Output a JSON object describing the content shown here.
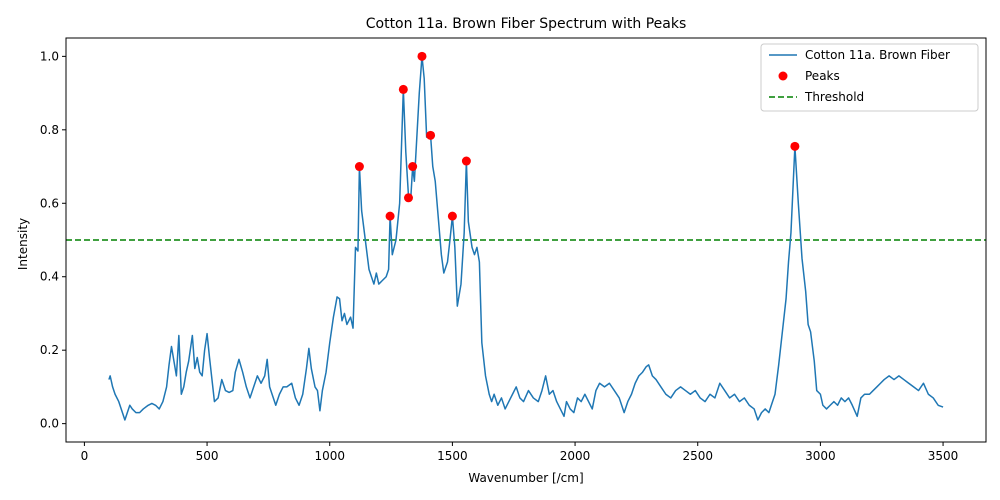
{
  "chart_data": {
    "type": "line",
    "title": "Cotton 11a. Brown Fiber Spectrum with Peaks",
    "xlabel": "Wavenumber [/cm]",
    "ylabel": "Intensity",
    "xlim": [
      -75,
      3675
    ],
    "ylim": [
      -0.05,
      1.05
    ],
    "xticks": [
      0,
      500,
      1000,
      1500,
      2000,
      2500,
      3000,
      3500
    ],
    "yticks": [
      0.0,
      0.2,
      0.4,
      0.6,
      0.8,
      1.0
    ],
    "grid": false,
    "legend_position": "top-right",
    "threshold": 0.5,
    "colors": {
      "spectrum": "#1f77b4",
      "peaks": "#ff0000",
      "threshold": "#008000"
    },
    "legend": [
      {
        "label": "Cotton 11a. Brown Fiber",
        "kind": "line"
      },
      {
        "label": "Peaks",
        "kind": "marker"
      },
      {
        "label": "Threshold",
        "kind": "dashed"
      }
    ],
    "series": [
      {
        "name": "Cotton 11a. Brown Fiber",
        "points": [
          [
            100,
            0.12
          ],
          [
            105,
            0.13
          ],
          [
            115,
            0.1
          ],
          [
            125,
            0.08
          ],
          [
            140,
            0.06
          ],
          [
            155,
            0.03
          ],
          [
            165,
            0.01
          ],
          [
            175,
            0.03
          ],
          [
            185,
            0.05
          ],
          [
            195,
            0.04
          ],
          [
            210,
            0.03
          ],
          [
            225,
            0.03
          ],
          [
            240,
            0.04
          ],
          [
            260,
            0.05
          ],
          [
            275,
            0.055
          ],
          [
            290,
            0.05
          ],
          [
            305,
            0.04
          ],
          [
            320,
            0.06
          ],
          [
            335,
            0.1
          ],
          [
            345,
            0.16
          ],
          [
            355,
            0.21
          ],
          [
            365,
            0.17
          ],
          [
            375,
            0.13
          ],
          [
            385,
            0.24
          ],
          [
            395,
            0.08
          ],
          [
            405,
            0.1
          ],
          [
            415,
            0.14
          ],
          [
            425,
            0.17
          ],
          [
            440,
            0.24
          ],
          [
            450,
            0.15
          ],
          [
            460,
            0.18
          ],
          [
            470,
            0.14
          ],
          [
            480,
            0.13
          ],
          [
            490,
            0.2
          ],
          [
            500,
            0.245
          ],
          [
            510,
            0.18
          ],
          [
            520,
            0.12
          ],
          [
            530,
            0.06
          ],
          [
            545,
            0.07
          ],
          [
            560,
            0.12
          ],
          [
            575,
            0.09
          ],
          [
            590,
            0.085
          ],
          [
            605,
            0.09
          ],
          [
            615,
            0.14
          ],
          [
            630,
            0.175
          ],
          [
            645,
            0.14
          ],
          [
            660,
            0.1
          ],
          [
            675,
            0.07
          ],
          [
            690,
            0.1
          ],
          [
            705,
            0.13
          ],
          [
            720,
            0.11
          ],
          [
            735,
            0.13
          ],
          [
            745,
            0.175
          ],
          [
            755,
            0.1
          ],
          [
            765,
            0.08
          ],
          [
            780,
            0.05
          ],
          [
            795,
            0.08
          ],
          [
            810,
            0.1
          ],
          [
            825,
            0.1
          ],
          [
            845,
            0.11
          ],
          [
            860,
            0.07
          ],
          [
            875,
            0.05
          ],
          [
            890,
            0.08
          ],
          [
            905,
            0.15
          ],
          [
            915,
            0.205
          ],
          [
            925,
            0.15
          ],
          [
            940,
            0.1
          ],
          [
            950,
            0.09
          ],
          [
            960,
            0.035
          ],
          [
            970,
            0.09
          ],
          [
            985,
            0.14
          ],
          [
            1000,
            0.22
          ],
          [
            1015,
            0.29
          ],
          [
            1030,
            0.345
          ],
          [
            1040,
            0.34
          ],
          [
            1050,
            0.28
          ],
          [
            1060,
            0.3
          ],
          [
            1070,
            0.27
          ],
          [
            1085,
            0.29
          ],
          [
            1095,
            0.26
          ],
          [
            1105,
            0.48
          ],
          [
            1115,
            0.47
          ],
          [
            1121,
            0.7
          ],
          [
            1130,
            0.58
          ],
          [
            1145,
            0.5
          ],
          [
            1160,
            0.42
          ],
          [
            1170,
            0.4
          ],
          [
            1180,
            0.38
          ],
          [
            1190,
            0.41
          ],
          [
            1200,
            0.38
          ],
          [
            1215,
            0.39
          ],
          [
            1230,
            0.4
          ],
          [
            1240,
            0.42
          ],
          [
            1246,
            0.565
          ],
          [
            1255,
            0.46
          ],
          [
            1270,
            0.5
          ],
          [
            1285,
            0.6
          ],
          [
            1300,
            0.91
          ],
          [
            1310,
            0.74
          ],
          [
            1321,
            0.62
          ],
          [
            1330,
            0.61
          ],
          [
            1338,
            0.7
          ],
          [
            1345,
            0.66
          ],
          [
            1355,
            0.78
          ],
          [
            1365,
            0.9
          ],
          [
            1376,
            1.0
          ],
          [
            1385,
            0.94
          ],
          [
            1395,
            0.78
          ],
          [
            1411,
            0.785
          ],
          [
            1420,
            0.7
          ],
          [
            1430,
            0.66
          ],
          [
            1440,
            0.58
          ],
          [
            1455,
            0.46
          ],
          [
            1465,
            0.41
          ],
          [
            1480,
            0.44
          ],
          [
            1490,
            0.5
          ],
          [
            1500,
            0.565
          ],
          [
            1510,
            0.48
          ],
          [
            1520,
            0.32
          ],
          [
            1535,
            0.38
          ],
          [
            1548,
            0.52
          ],
          [
            1557,
            0.715
          ],
          [
            1565,
            0.55
          ],
          [
            1580,
            0.48
          ],
          [
            1590,
            0.46
          ],
          [
            1600,
            0.48
          ],
          [
            1610,
            0.44
          ],
          [
            1620,
            0.22
          ],
          [
            1635,
            0.13
          ],
          [
            1650,
            0.08
          ],
          [
            1660,
            0.06
          ],
          [
            1670,
            0.08
          ],
          [
            1685,
            0.05
          ],
          [
            1700,
            0.07
          ],
          [
            1715,
            0.04
          ],
          [
            1730,
            0.06
          ],
          [
            1745,
            0.08
          ],
          [
            1760,
            0.1
          ],
          [
            1775,
            0.07
          ],
          [
            1790,
            0.06
          ],
          [
            1810,
            0.09
          ],
          [
            1830,
            0.07
          ],
          [
            1850,
            0.06
          ],
          [
            1865,
            0.09
          ],
          [
            1880,
            0.13
          ],
          [
            1895,
            0.08
          ],
          [
            1910,
            0.09
          ],
          [
            1925,
            0.06
          ],
          [
            1940,
            0.04
          ],
          [
            1955,
            0.02
          ],
          [
            1965,
            0.06
          ],
          [
            1980,
            0.04
          ],
          [
            1995,
            0.03
          ],
          [
            2010,
            0.07
          ],
          [
            2025,
            0.06
          ],
          [
            2040,
            0.08
          ],
          [
            2055,
            0.06
          ],
          [
            2070,
            0.04
          ],
          [
            2085,
            0.09
          ],
          [
            2100,
            0.11
          ],
          [
            2120,
            0.1
          ],
          [
            2140,
            0.11
          ],
          [
            2160,
            0.09
          ],
          [
            2180,
            0.07
          ],
          [
            2200,
            0.03
          ],
          [
            2215,
            0.06
          ],
          [
            2230,
            0.08
          ],
          [
            2245,
            0.11
          ],
          [
            2260,
            0.13
          ],
          [
            2275,
            0.14
          ],
          [
            2290,
            0.155
          ],
          [
            2300,
            0.16
          ],
          [
            2315,
            0.13
          ],
          [
            2330,
            0.12
          ],
          [
            2350,
            0.1
          ],
          [
            2370,
            0.08
          ],
          [
            2390,
            0.07
          ],
          [
            2410,
            0.09
          ],
          [
            2430,
            0.1
          ],
          [
            2450,
            0.09
          ],
          [
            2470,
            0.08
          ],
          [
            2490,
            0.09
          ],
          [
            2510,
            0.07
          ],
          [
            2530,
            0.06
          ],
          [
            2550,
            0.08
          ],
          [
            2570,
            0.07
          ],
          [
            2590,
            0.11
          ],
          [
            2610,
            0.09
          ],
          [
            2630,
            0.07
          ],
          [
            2650,
            0.08
          ],
          [
            2670,
            0.06
          ],
          [
            2690,
            0.07
          ],
          [
            2710,
            0.05
          ],
          [
            2730,
            0.04
          ],
          [
            2745,
            0.01
          ],
          [
            2760,
            0.03
          ],
          [
            2775,
            0.04
          ],
          [
            2790,
            0.03
          ],
          [
            2800,
            0.05
          ],
          [
            2815,
            0.08
          ],
          [
            2830,
            0.16
          ],
          [
            2845,
            0.25
          ],
          [
            2860,
            0.34
          ],
          [
            2870,
            0.44
          ],
          [
            2880,
            0.52
          ],
          [
            2896,
            0.755
          ],
          [
            2910,
            0.6
          ],
          [
            2925,
            0.45
          ],
          [
            2940,
            0.36
          ],
          [
            2950,
            0.27
          ],
          [
            2960,
            0.25
          ],
          [
            2975,
            0.17
          ],
          [
            2985,
            0.09
          ],
          [
            3000,
            0.08
          ],
          [
            3010,
            0.05
          ],
          [
            3025,
            0.04
          ],
          [
            3040,
            0.05
          ],
          [
            3055,
            0.06
          ],
          [
            3070,
            0.05
          ],
          [
            3085,
            0.07
          ],
          [
            3100,
            0.06
          ],
          [
            3115,
            0.07
          ],
          [
            3130,
            0.05
          ],
          [
            3150,
            0.02
          ],
          [
            3165,
            0.07
          ],
          [
            3180,
            0.08
          ],
          [
            3200,
            0.08
          ],
          [
            3215,
            0.09
          ],
          [
            3230,
            0.1
          ],
          [
            3245,
            0.11
          ],
          [
            3260,
            0.12
          ],
          [
            3280,
            0.13
          ],
          [
            3300,
            0.12
          ],
          [
            3320,
            0.13
          ],
          [
            3340,
            0.12
          ],
          [
            3360,
            0.11
          ],
          [
            3380,
            0.1
          ],
          [
            3400,
            0.09
          ],
          [
            3420,
            0.11
          ],
          [
            3440,
            0.08
          ],
          [
            3460,
            0.07
          ],
          [
            3480,
            0.05
          ],
          [
            3500,
            0.045
          ]
        ]
      }
    ],
    "peaks": [
      [
        1121,
        0.7
      ],
      [
        1246,
        0.565
      ],
      [
        1300,
        0.91
      ],
      [
        1321,
        0.615
      ],
      [
        1338,
        0.7
      ],
      [
        1376,
        1.0
      ],
      [
        1411,
        0.785
      ],
      [
        1500,
        0.565
      ],
      [
        1557,
        0.715
      ],
      [
        2896,
        0.755
      ]
    ]
  }
}
